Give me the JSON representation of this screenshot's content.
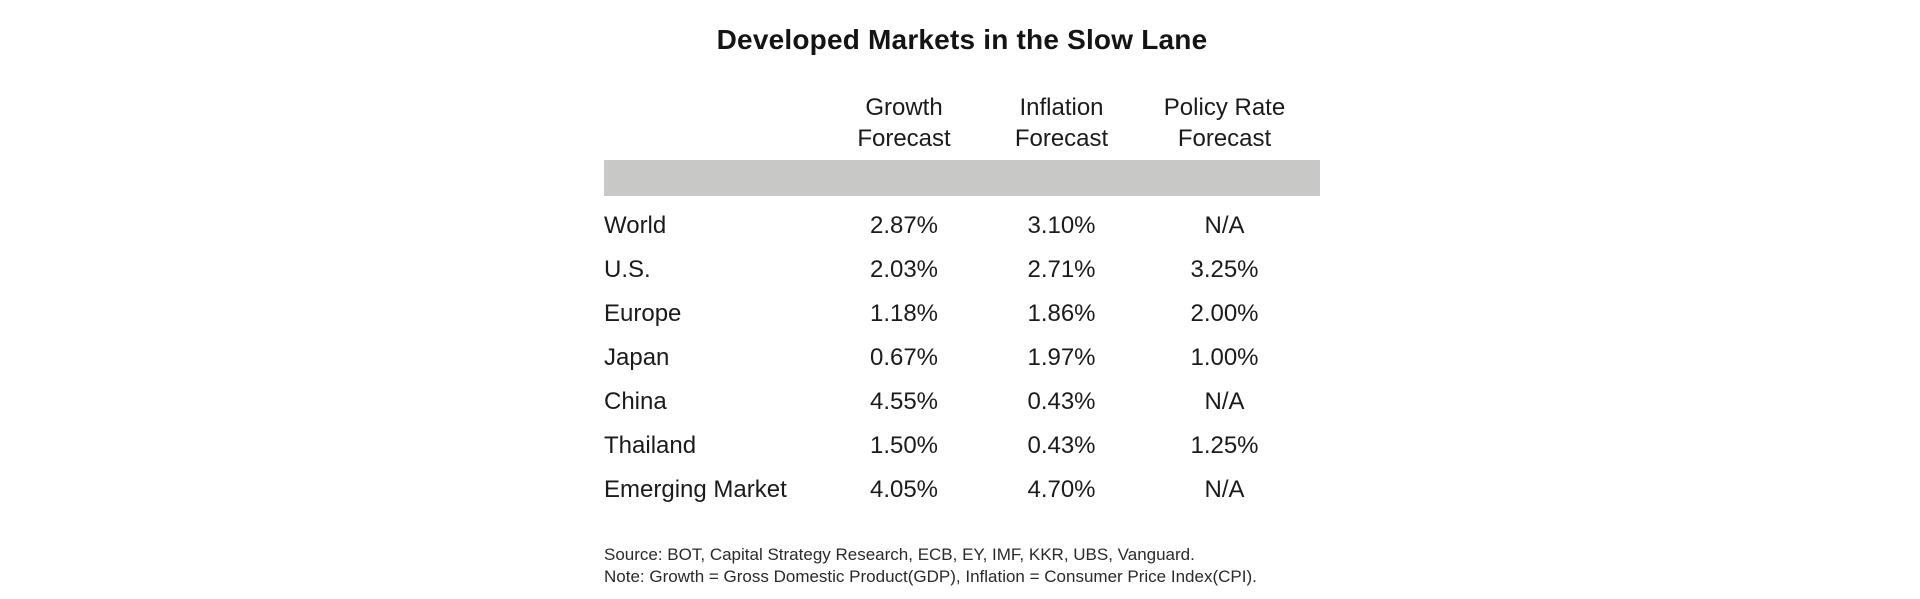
{
  "title": "Developed Markets in the Slow Lane",
  "colors": {
    "header_bar": "#c8c8c6",
    "text": "#1b1b1b",
    "background": "#ffffff"
  },
  "table": {
    "header": {
      "growth": {
        "line1": "Growth",
        "line2": "Forecast"
      },
      "inflation": {
        "line1": "Inflation",
        "line2": "Forecast"
      },
      "policy": {
        "line1": "Policy Rate",
        "line2": "Forecast"
      }
    },
    "rows": [
      {
        "label": "World",
        "growth": "2.87%",
        "inflation": "3.10%",
        "policy": "N/A"
      },
      {
        "label": "U.S.",
        "growth": "2.03%",
        "inflation": "2.71%",
        "policy": "3.25%"
      },
      {
        "label": "Europe",
        "growth": "1.18%",
        "inflation": "1.86%",
        "policy": "2.00%"
      },
      {
        "label": "Japan",
        "growth": "0.67%",
        "inflation": "1.97%",
        "policy": "1.00%"
      },
      {
        "label": "China",
        "growth": "4.55%",
        "inflation": "0.43%",
        "policy": "N/A"
      },
      {
        "label": "Thailand",
        "growth": "1.50%",
        "inflation": "0.43%",
        "policy": "1.25%"
      },
      {
        "label": "Emerging Market",
        "growth": "4.05%",
        "inflation": "4.70%",
        "policy": "N/A"
      }
    ]
  },
  "footer": {
    "source": "Source:  BOT, Capital Strategy Research, ECB, EY, IMF, KKR, UBS, Vanguard.",
    "note": "Note: Growth = Gross Domestic Product(GDP), Inflation = Consumer Price Index(CPI)."
  },
  "chart_data": {
    "type": "table",
    "title": "Developed Markets in the Slow Lane",
    "columns": [
      "Growth Forecast",
      "Inflation Forecast",
      "Policy Rate Forecast"
    ],
    "rows": [
      "World",
      "U.S.",
      "Europe",
      "Japan",
      "China",
      "Thailand",
      "Emerging Market"
    ],
    "units": "percent",
    "na_display": "N/A",
    "series": [
      {
        "name": "Growth Forecast",
        "values": [
          2.87,
          2.03,
          1.18,
          0.67,
          4.55,
          1.5,
          4.05
        ]
      },
      {
        "name": "Inflation Forecast",
        "values": [
          3.1,
          2.71,
          1.86,
          1.97,
          0.43,
          0.43,
          4.7
        ]
      },
      {
        "name": "Policy Rate Forecast",
        "values": [
          null,
          3.25,
          2.0,
          1.0,
          null,
          1.25,
          null
        ]
      }
    ],
    "layout": {
      "header_band_color": "#c8c8c6",
      "value_alignment": "center",
      "label_alignment": "left"
    }
  }
}
